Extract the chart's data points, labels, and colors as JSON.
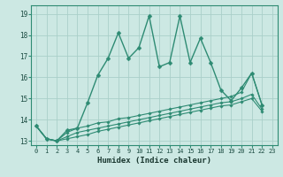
{
  "xlabel": "Humidex (Indice chaleur)",
  "x_values": [
    0,
    1,
    2,
    3,
    4,
    5,
    6,
    7,
    8,
    9,
    10,
    11,
    12,
    13,
    14,
    15,
    16,
    17,
    18,
    19,
    20,
    21,
    22
  ],
  "line1": [
    13.7,
    13.1,
    13.0,
    13.5,
    13.6,
    14.8,
    16.1,
    16.9,
    18.1,
    16.9,
    17.4,
    18.9,
    16.5,
    16.7,
    18.9,
    16.7,
    17.85,
    16.7,
    15.4,
    14.9,
    15.5,
    16.2,
    14.7
  ],
  "line2": [
    13.7,
    13.1,
    13.0,
    13.4,
    13.6,
    13.7,
    13.85,
    13.9,
    14.05,
    14.1,
    14.2,
    14.3,
    14.4,
    14.5,
    14.6,
    14.7,
    14.8,
    14.9,
    15.0,
    15.1,
    15.3,
    16.2,
    14.7
  ],
  "line3": [
    13.7,
    13.1,
    13.0,
    13.2,
    13.4,
    13.5,
    13.6,
    13.7,
    13.8,
    13.9,
    14.0,
    14.1,
    14.2,
    14.3,
    14.4,
    14.5,
    14.6,
    14.7,
    14.8,
    14.85,
    15.0,
    15.2,
    14.5
  ],
  "line4": [
    13.7,
    13.1,
    13.0,
    13.1,
    13.2,
    13.3,
    13.45,
    13.55,
    13.65,
    13.75,
    13.85,
    13.95,
    14.05,
    14.15,
    14.25,
    14.35,
    14.45,
    14.55,
    14.65,
    14.7,
    14.85,
    15.0,
    14.4
  ],
  "color": "#2e8b73",
  "bg_color": "#cce8e3",
  "grid_color": "#aacfc9",
  "ylim": [
    12.8,
    19.4
  ],
  "yticks": [
    13,
    14,
    15,
    16,
    17,
    18,
    19
  ],
  "xticks": [
    0,
    1,
    2,
    3,
    4,
    5,
    6,
    7,
    8,
    9,
    10,
    11,
    12,
    13,
    14,
    15,
    16,
    17,
    18,
    19,
    20,
    21,
    22,
    23
  ]
}
